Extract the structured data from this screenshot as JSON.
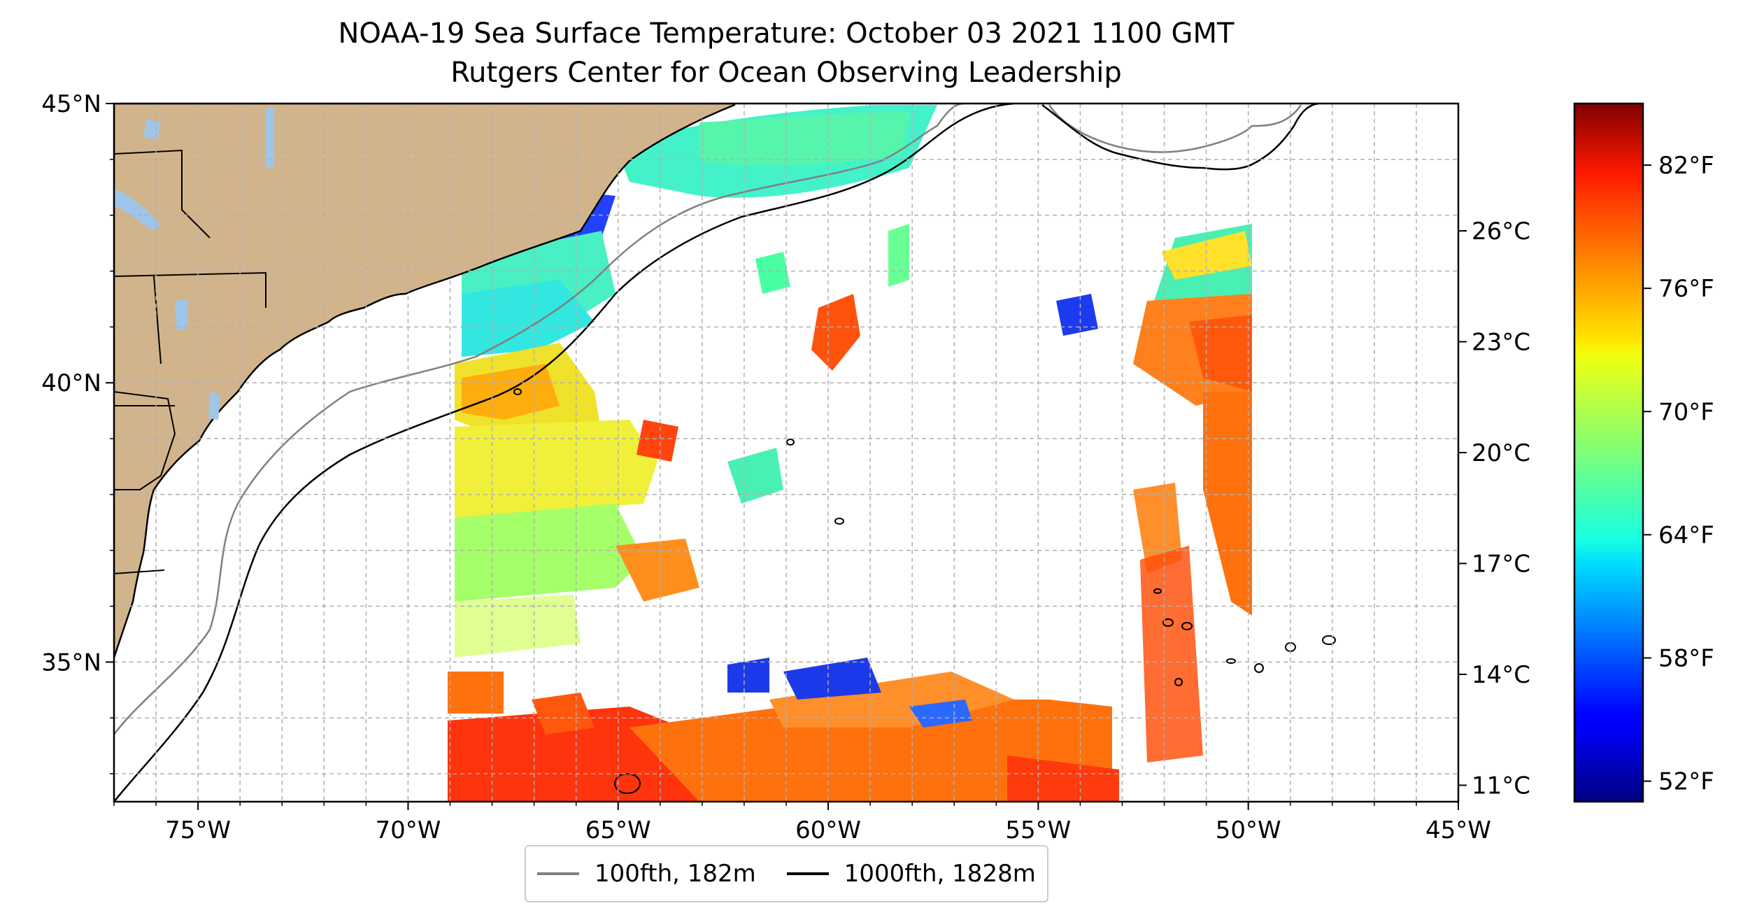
{
  "title": {
    "line1": "NOAA-19 Sea Surface Temperature: October 03 2021 1100 GMT",
    "line2": "Rutgers Center for Ocean Observing Leadership"
  },
  "map": {
    "extent": {
      "lon": [
        -77,
        -45
      ],
      "lat": [
        32.5,
        45
      ]
    },
    "lon_ticks": [
      {
        "value": -75,
        "label": "75°W"
      },
      {
        "value": -70,
        "label": "70°W"
      },
      {
        "value": -65,
        "label": "65°W"
      },
      {
        "value": -60,
        "label": "60°W"
      },
      {
        "value": -55,
        "label": "55°W"
      },
      {
        "value": -50,
        "label": "50°W"
      },
      {
        "value": -45,
        "label": "45°W"
      }
    ],
    "lat_ticks": [
      {
        "value": 35,
        "label": "35°N"
      },
      {
        "value": 40,
        "label": "40°N"
      },
      {
        "value": 45,
        "label": "45°N"
      }
    ],
    "gridlines": "dashed gray, 1° spacing",
    "land_color": "#d2b48c",
    "lake_color": "#9fc5e8",
    "background": "#ffffff"
  },
  "colorbar": {
    "colormap": "jet",
    "celsius_ticks": [
      {
        "value": 11,
        "label": "11°C"
      },
      {
        "value": 14,
        "label": "14°C"
      },
      {
        "value": 17,
        "label": "17°C"
      },
      {
        "value": 20,
        "label": "20°C"
      },
      {
        "value": 23,
        "label": "23°C"
      },
      {
        "value": 26,
        "label": "26°C"
      }
    ],
    "fahrenheit_ticks": [
      {
        "value": 52,
        "label": "52°F"
      },
      {
        "value": 58,
        "label": "58°F"
      },
      {
        "value": 64,
        "label": "64°F"
      },
      {
        "value": 70,
        "label": "70°F"
      },
      {
        "value": 76,
        "label": "76°F"
      },
      {
        "value": 82,
        "label": "82°F"
      }
    ],
    "range_f": [
      51,
      85
    ]
  },
  "legend": {
    "items": [
      {
        "label": "100fth, 182m",
        "color": "#808080"
      },
      {
        "label": "1000fth, 1828m",
        "color": "#000000"
      }
    ]
  }
}
